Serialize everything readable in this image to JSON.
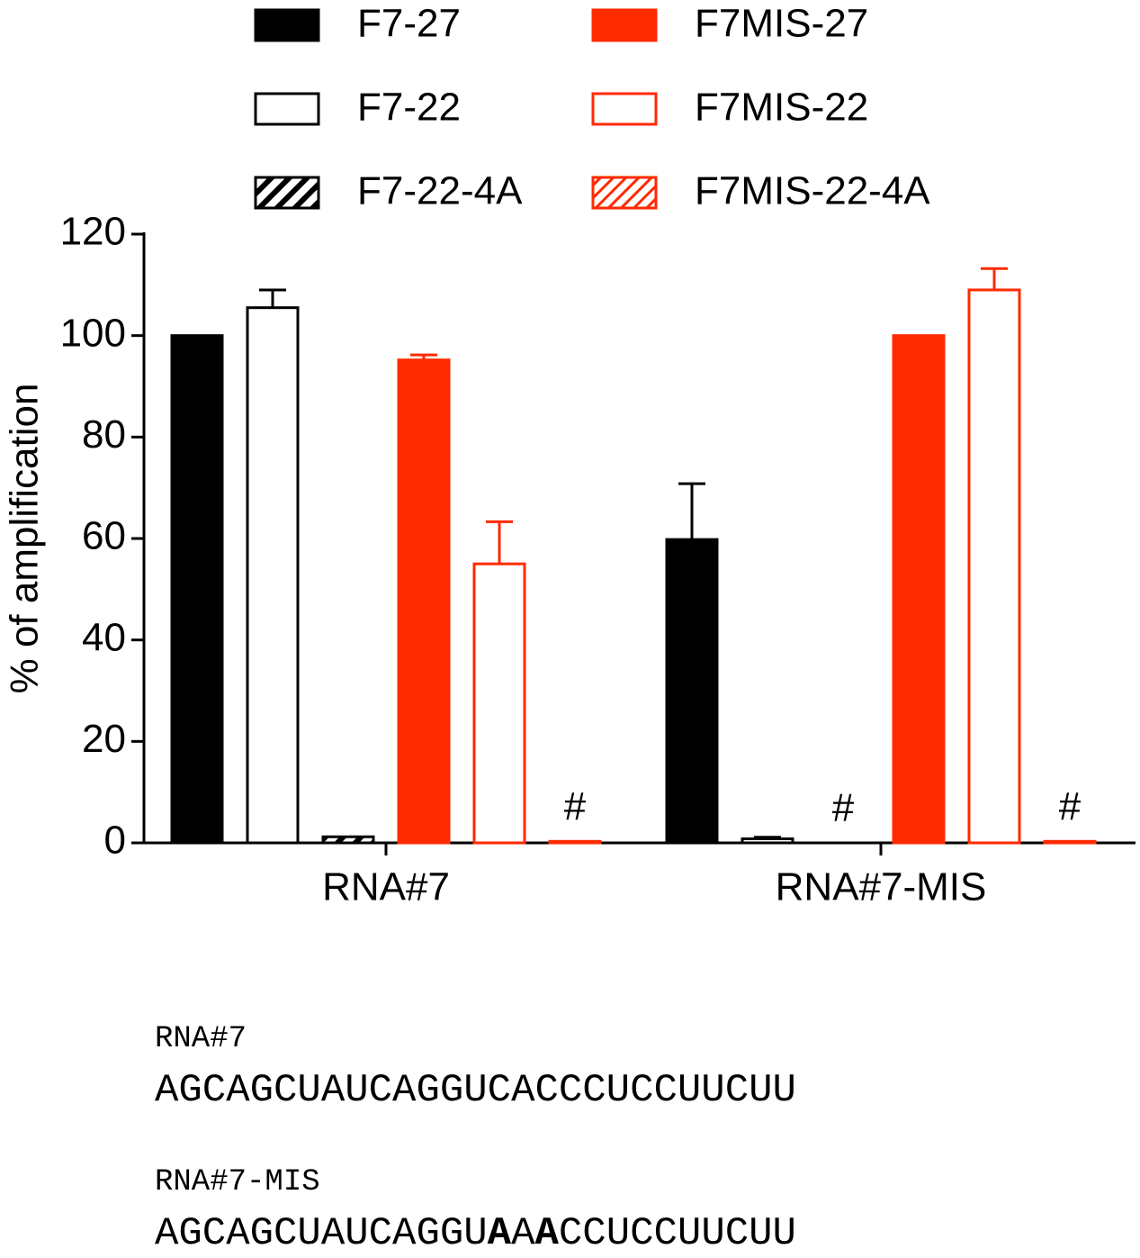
{
  "chart_data": {
    "type": "bar",
    "y_label": "% of amplification",
    "categories": [
      "RNA#7",
      "RNA#7-MIS"
    ],
    "ylim": [
      0,
      120
    ],
    "yticks": [
      0,
      20,
      40,
      60,
      80,
      100,
      120
    ],
    "series": [
      {
        "name": "F7-27",
        "color": "#000000",
        "style": "solid",
        "values": [
          100,
          59.8
        ],
        "errors": [
          null,
          11
        ]
      },
      {
        "name": "F7-22",
        "color": "#000000",
        "style": "outline",
        "values": [
          105.5,
          0.8
        ],
        "errors": [
          3.5,
          0.3
        ]
      },
      {
        "name": "F7-22-4A",
        "color": "#000000",
        "style": "hatch",
        "values": [
          1.2,
          0
        ],
        "errors": [
          null,
          null
        ]
      },
      {
        "name": "F7MIS-27",
        "color": "#ff2a00",
        "style": "solid",
        "values": [
          95.2,
          100
        ],
        "errors": [
          1,
          null
        ]
      },
      {
        "name": "F7MIS-22",
        "color": "#ff2a00",
        "style": "outline",
        "values": [
          55,
          109
        ],
        "errors": [
          8.3,
          4.2
        ]
      },
      {
        "name": "F7MIS-22-4A",
        "color": "#ff2a00",
        "style": "hatch",
        "values": [
          0.3,
          0.3
        ],
        "errors": [
          null,
          null
        ]
      }
    ],
    "annotations": [
      {
        "series": 5,
        "category": 0,
        "text": "#"
      },
      {
        "series": 2,
        "category": 1,
        "text": "#"
      },
      {
        "series": 5,
        "category": 1,
        "text": "#"
      }
    ]
  },
  "sequences": [
    {
      "name": "RNA#7",
      "parts": [
        {
          "text": "AGCAGCUAUCAGGUCACCCUCCUUCUU"
        }
      ]
    },
    {
      "name": "RNA#7-MIS",
      "parts": [
        {
          "text": "AGCAGCUAUCAGGU"
        },
        {
          "text": "A",
          "bold": true
        },
        {
          "text": "A"
        },
        {
          "text": "A",
          "bold": true
        },
        {
          "text": "CCUCCUUCUU"
        }
      ]
    }
  ]
}
